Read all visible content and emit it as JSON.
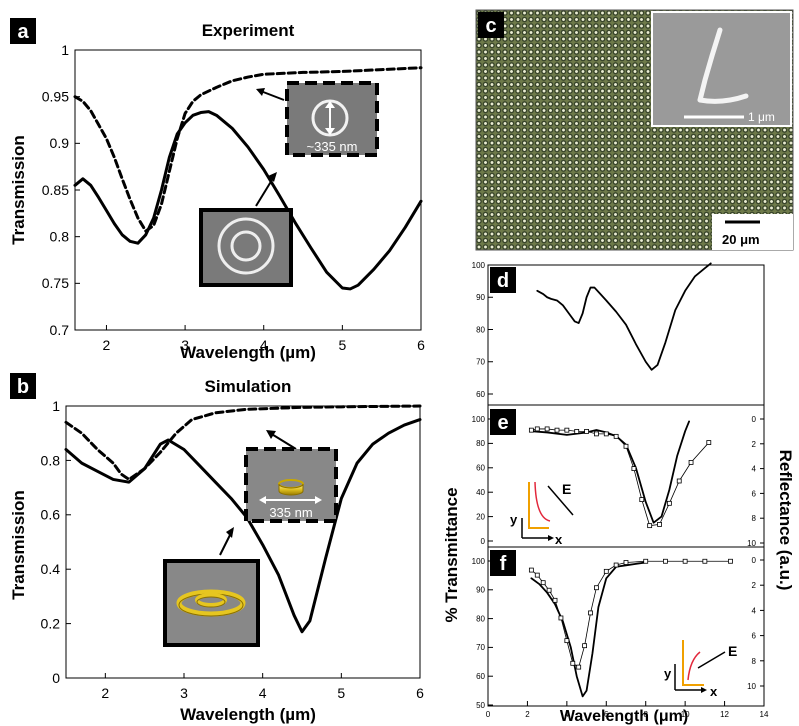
{
  "panels": {
    "a": {
      "letter": "a",
      "title": "Experiment",
      "inset_label": "~335 nm"
    },
    "b": {
      "letter": "b",
      "title": "Simulation",
      "inset_label": "335 nm"
    },
    "c": {
      "letter": "c",
      "scale_inset": "1 μm",
      "scale_main": "20 μm"
    },
    "d": {
      "letter": "d"
    },
    "e": {
      "letter": "e"
    },
    "f": {
      "letter": "f"
    }
  },
  "axes_text": {
    "transmission": "Transmission",
    "wavelength_um": "Wavelength (µm)",
    "wavelength_mu": "Wavelength (μm)",
    "pct_transmittance": "% Transmittance",
    "reflectance": "Reflectance (a.u.)",
    "E": "E",
    "x": "x",
    "y": "y"
  },
  "chart_data": [
    {
      "id": "a",
      "type": "line",
      "title": "Experiment",
      "xlabel": "Wavelength (µm)",
      "ylabel": "Transmission",
      "xlim": [
        1.6,
        6.0
      ],
      "ylim": [
        0.7,
        1.0
      ],
      "xticks": [
        "2",
        "3",
        "4",
        "5",
        "6"
      ],
      "yticks": [
        "0.7",
        "0.75",
        "0.8",
        "0.85",
        "0.9",
        "0.95",
        "1"
      ],
      "series": [
        {
          "style": "solid",
          "points": [
            [
              1.6,
              0.855
            ],
            [
              1.7,
              0.862
            ],
            [
              1.8,
              0.855
            ],
            [
              1.9,
              0.842
            ],
            [
              2.0,
              0.828
            ],
            [
              2.1,
              0.814
            ],
            [
              2.2,
              0.802
            ],
            [
              2.3,
              0.795
            ],
            [
              2.4,
              0.793
            ],
            [
              2.5,
              0.802
            ],
            [
              2.6,
              0.82
            ],
            [
              2.7,
              0.85
            ],
            [
              2.8,
              0.885
            ],
            [
              2.9,
              0.91
            ],
            [
              3.0,
              0.922
            ],
            [
              3.1,
              0.93
            ],
            [
              3.2,
              0.933
            ],
            [
              3.3,
              0.934
            ],
            [
              3.4,
              0.93
            ],
            [
              3.6,
              0.916
            ],
            [
              3.8,
              0.896
            ],
            [
              4.0,
              0.872
            ],
            [
              4.2,
              0.844
            ],
            [
              4.4,
              0.815
            ],
            [
              4.6,
              0.788
            ],
            [
              4.8,
              0.762
            ],
            [
              5.0,
              0.745
            ],
            [
              5.1,
              0.744
            ],
            [
              5.2,
              0.748
            ],
            [
              5.4,
              0.765
            ],
            [
              5.6,
              0.785
            ],
            [
              5.8,
              0.81
            ],
            [
              6.0,
              0.838
            ]
          ]
        },
        {
          "style": "dashed",
          "points": [
            [
              1.6,
              0.95
            ],
            [
              1.7,
              0.945
            ],
            [
              1.8,
              0.935
            ],
            [
              1.9,
              0.92
            ],
            [
              2.0,
              0.905
            ],
            [
              2.1,
              0.885
            ],
            [
              2.2,
              0.862
            ],
            [
              2.3,
              0.84
            ],
            [
              2.4,
              0.82
            ],
            [
              2.5,
              0.806
            ],
            [
              2.6,
              0.812
            ],
            [
              2.7,
              0.835
            ],
            [
              2.8,
              0.87
            ],
            [
              2.9,
              0.905
            ],
            [
              3.0,
              0.932
            ],
            [
              3.1,
              0.945
            ],
            [
              3.2,
              0.952
            ],
            [
              3.4,
              0.96
            ],
            [
              3.6,
              0.967
            ],
            [
              3.8,
              0.971
            ],
            [
              4.0,
              0.974
            ],
            [
              4.5,
              0.976
            ],
            [
              5.0,
              0.977
            ],
            [
              5.5,
              0.979
            ],
            [
              6.0,
              0.981
            ]
          ]
        }
      ]
    },
    {
      "id": "b",
      "type": "line",
      "title": "Simulation",
      "xlabel": "Wavelength (µm)",
      "ylabel": "Transmission",
      "xlim": [
        1.5,
        6.0
      ],
      "ylim": [
        0,
        1
      ],
      "xticks": [
        "2",
        "3",
        "4",
        "5",
        "6"
      ],
      "yticks": [
        "0",
        "0.2",
        "0.4",
        "0.6",
        "0.8",
        "1"
      ],
      "series": [
        {
          "style": "solid",
          "points": [
            [
              1.5,
              0.84
            ],
            [
              1.7,
              0.79
            ],
            [
              1.9,
              0.76
            ],
            [
              2.1,
              0.73
            ],
            [
              2.3,
              0.72
            ],
            [
              2.5,
              0.77
            ],
            [
              2.7,
              0.86
            ],
            [
              2.8,
              0.875
            ],
            [
              3.0,
              0.84
            ],
            [
              3.2,
              0.78
            ],
            [
              3.4,
              0.72
            ],
            [
              3.6,
              0.66
            ],
            [
              3.8,
              0.59
            ],
            [
              4.0,
              0.49
            ],
            [
              4.2,
              0.38
            ],
            [
              4.4,
              0.23
            ],
            [
              4.5,
              0.17
            ],
            [
              4.6,
              0.21
            ],
            [
              4.8,
              0.44
            ],
            [
              5.0,
              0.66
            ],
            [
              5.2,
              0.79
            ],
            [
              5.4,
              0.86
            ],
            [
              5.6,
              0.9
            ],
            [
              5.8,
              0.93
            ],
            [
              6.0,
              0.95
            ]
          ]
        },
        {
          "style": "dashed",
          "points": [
            [
              1.5,
              0.94
            ],
            [
              1.7,
              0.9
            ],
            [
              1.9,
              0.84
            ],
            [
              2.1,
              0.79
            ],
            [
              2.2,
              0.75
            ],
            [
              2.3,
              0.73
            ],
            [
              2.5,
              0.77
            ],
            [
              2.7,
              0.83
            ],
            [
              2.9,
              0.9
            ],
            [
              3.1,
              0.95
            ],
            [
              3.4,
              0.975
            ],
            [
              3.8,
              0.988
            ],
            [
              4.5,
              0.995
            ],
            [
              5.0,
              0.997
            ],
            [
              6.0,
              1.0
            ]
          ]
        }
      ]
    },
    {
      "id": "d",
      "type": "line",
      "xlim": [
        0,
        14
      ],
      "ylim": [
        60,
        100
      ],
      "yticks": [
        "60",
        "70",
        "80",
        "90",
        "100"
      ],
      "series": [
        {
          "style": "solid",
          "points": [
            [
              2.5,
              92
            ],
            [
              2.8,
              91
            ],
            [
              3.0,
              90
            ],
            [
              3.2,
              89.5
            ],
            [
              3.5,
              89
            ],
            [
              3.8,
              87.5
            ],
            [
              4.1,
              85
            ],
            [
              4.4,
              82.5
            ],
            [
              4.6,
              82
            ],
            [
              4.8,
              85
            ],
            [
              5.0,
              90
            ],
            [
              5.2,
              93
            ],
            [
              5.4,
              93
            ],
            [
              5.7,
              91
            ],
            [
              6.0,
              89
            ],
            [
              6.5,
              85.5
            ],
            [
              7.0,
              81.5
            ],
            [
              7.5,
              75.5
            ],
            [
              8.0,
              70
            ],
            [
              8.3,
              67.5
            ],
            [
              8.6,
              69
            ],
            [
              9.0,
              76
            ],
            [
              9.5,
              86
            ],
            [
              10.0,
              92
            ],
            [
              10.5,
              96.5
            ],
            [
              11.0,
              99
            ],
            [
              11.3,
              100.5
            ]
          ]
        }
      ]
    },
    {
      "id": "e",
      "type": "line",
      "xlim": [
        0,
        14
      ],
      "ylim": [
        0,
        100
      ],
      "yticks": [
        "0",
        "20",
        "40",
        "60",
        "80",
        "100"
      ],
      "y2ticks": [
        "0",
        "2",
        "4",
        "6",
        "8",
        "10"
      ],
      "series": [
        {
          "style": "solid",
          "axis": "left",
          "points": [
            [
              2.2,
              90
            ],
            [
              3.0,
              89
            ],
            [
              4.0,
              87
            ],
            [
              5.0,
              89
            ],
            [
              5.5,
              91
            ],
            [
              6.0,
              89
            ],
            [
              6.5,
              86
            ],
            [
              7.0,
              79
            ],
            [
              7.5,
              60
            ],
            [
              8.0,
              32
            ],
            [
              8.4,
              15
            ],
            [
              8.8,
              20
            ],
            [
              9.2,
              42
            ],
            [
              9.6,
              70
            ],
            [
              10.0,
              90
            ],
            [
              10.2,
              98
            ]
          ]
        },
        {
          "style": "markers",
          "axis": "right",
          "points": [
            [
              2.2,
              0.9
            ],
            [
              2.5,
              0.8
            ],
            [
              3.0,
              0.8
            ],
            [
              3.5,
              0.9
            ],
            [
              4.0,
              0.9
            ],
            [
              4.5,
              1.0
            ],
            [
              5.0,
              1.0
            ],
            [
              5.5,
              1.2
            ],
            [
              6.0,
              1.2
            ],
            [
              6.5,
              1.4
            ],
            [
              7.0,
              2.2
            ],
            [
              7.4,
              4.0
            ],
            [
              7.8,
              6.5
            ],
            [
              8.2,
              8.6
            ],
            [
              8.7,
              8.5
            ],
            [
              9.2,
              6.8
            ],
            [
              9.7,
              5.0
            ],
            [
              10.3,
              3.5
            ],
            [
              11.2,
              1.9
            ]
          ]
        }
      ]
    },
    {
      "id": "f",
      "type": "line",
      "xlabel": "Wavelength (μm)",
      "xlim": [
        0,
        14
      ],
      "ylim": [
        50,
        100
      ],
      "xticks": [
        "0",
        "2",
        "4",
        "6",
        "8",
        "10",
        "12",
        "14"
      ],
      "yticks": [
        "50",
        "60",
        "70",
        "80",
        "90",
        "100"
      ],
      "y2ticks": [
        "0",
        "2",
        "4",
        "6",
        "8",
        "10"
      ],
      "series": [
        {
          "style": "solid",
          "axis": "left",
          "points": [
            [
              2.2,
              94
            ],
            [
              2.6,
              92
            ],
            [
              3.0,
              89
            ],
            [
              3.4,
              85
            ],
            [
              3.8,
              79
            ],
            [
              4.2,
              70
            ],
            [
              4.5,
              60
            ],
            [
              4.8,
              53
            ],
            [
              5.0,
              55
            ],
            [
              5.3,
              68
            ],
            [
              5.6,
              84
            ],
            [
              6.0,
              94
            ],
            [
              6.5,
              98
            ],
            [
              7.0,
              98.5
            ],
            [
              7.5,
              99
            ],
            [
              8.0,
              99.5
            ]
          ]
        },
        {
          "style": "markers",
          "axis": "right",
          "points": [
            [
              2.2,
              0.8
            ],
            [
              2.5,
              1.2
            ],
            [
              2.8,
              1.8
            ],
            [
              3.1,
              2.4
            ],
            [
              3.4,
              3.2
            ],
            [
              3.7,
              4.6
            ],
            [
              4.0,
              6.4
            ],
            [
              4.3,
              8.2
            ],
            [
              4.6,
              8.5
            ],
            [
              4.9,
              6.8
            ],
            [
              5.2,
              4.2
            ],
            [
              5.5,
              2.2
            ],
            [
              6.0,
              0.9
            ],
            [
              6.5,
              0.4
            ],
            [
              7.0,
              0.2
            ],
            [
              8.0,
              0.1
            ],
            [
              9.0,
              0.1
            ],
            [
              10.0,
              0.1
            ],
            [
              11.0,
              0.1
            ],
            [
              12.3,
              0.1
            ]
          ]
        }
      ]
    }
  ]
}
